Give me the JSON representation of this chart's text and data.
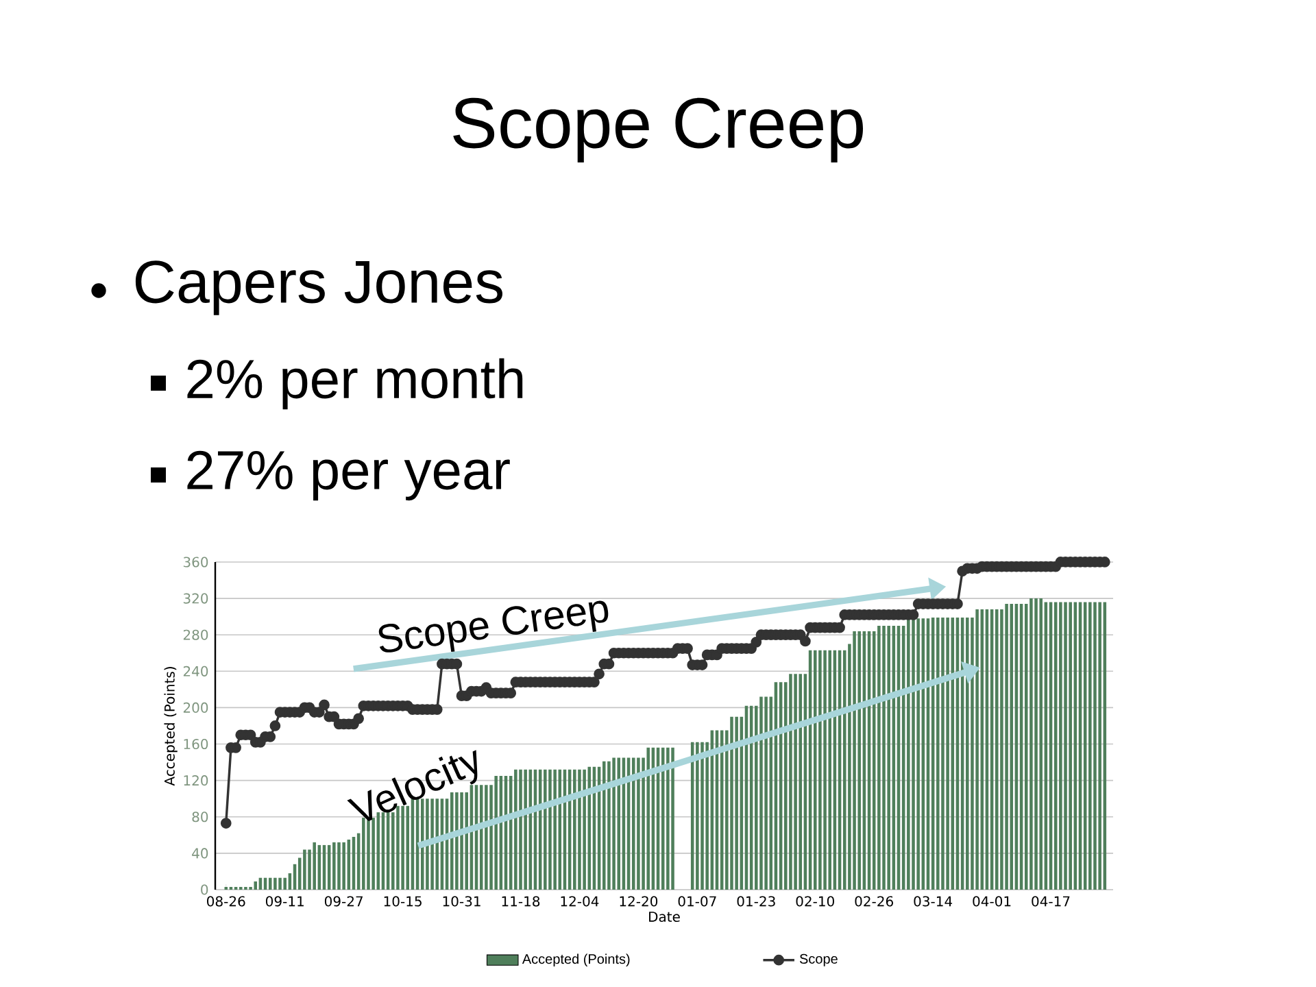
{
  "chart_data": {
    "type": "bar",
    "title": "Scope Creep",
    "subtitle": "Capers Jones",
    "annotations": [
      "2% per month",
      "27% per year",
      "Scope Creep",
      "Velocity"
    ],
    "xlabel": "Date",
    "ylabel": "Accepted (Points)",
    "categories": [
      "08-26",
      null,
      null,
      null,
      null,
      null,
      null,
      null,
      null,
      null,
      null,
      null,
      "09-11",
      null,
      null,
      null,
      null,
      null,
      null,
      null,
      null,
      null,
      null,
      null,
      "09-27",
      null,
      null,
      null,
      null,
      null,
      null,
      null,
      null,
      null,
      null,
      null,
      "10-15",
      null,
      null,
      null,
      null,
      null,
      null,
      null,
      null,
      null,
      null,
      null,
      "10-31",
      null,
      null,
      null,
      null,
      null,
      null,
      null,
      null,
      null,
      null,
      null,
      "11-18",
      null,
      null,
      null,
      null,
      null,
      null,
      null,
      null,
      null,
      null,
      null,
      "12-04",
      null,
      null,
      null,
      null,
      null,
      null,
      null,
      null,
      null,
      null,
      null,
      "12-20",
      null,
      null,
      null,
      null,
      null,
      null,
      null,
      null,
      null,
      null,
      null,
      "01-07",
      null,
      null,
      null,
      null,
      null,
      null,
      null,
      null,
      null,
      null,
      null,
      "01-23",
      null,
      null,
      null,
      null,
      null,
      null,
      null,
      null,
      null,
      null,
      null,
      "02-10",
      null,
      null,
      null,
      null,
      null,
      null,
      null,
      null,
      null,
      null,
      null,
      "02-26",
      null,
      null,
      null,
      null,
      null,
      null,
      null,
      null,
      null,
      null,
      null,
      "03-14",
      null,
      null,
      null,
      null,
      null,
      null,
      null,
      null,
      null,
      null,
      null,
      "04-01",
      null,
      null,
      null,
      null,
      null,
      null,
      null,
      null,
      null,
      null,
      null,
      "04-17",
      null,
      null,
      null,
      null,
      null,
      null,
      null,
      null,
      null,
      null,
      null
    ],
    "series": [
      {
        "name": "Accepted (Points)",
        "type": "bar",
        "color": "#4f7f5b",
        "values": [
          3,
          3,
          3,
          3,
          3,
          3,
          9,
          13,
          13,
          13,
          13,
          13,
          13,
          18,
          28,
          35,
          44,
          44,
          52,
          49,
          49,
          49,
          52,
          52,
          52,
          55,
          58,
          62,
          79,
          79,
          79,
          85,
          85,
          85,
          85,
          92,
          92,
          92,
          100,
          100,
          100,
          100,
          100,
          100,
          100,
          100,
          107,
          107,
          107,
          107,
          115,
          115,
          115,
          115,
          115,
          125,
          125,
          125,
          125,
          132,
          132,
          132,
          132,
          132,
          132,
          132,
          132,
          132,
          132,
          132,
          132,
          132,
          132,
          132,
          135,
          135,
          135,
          141,
          141,
          145,
          145,
          145,
          145,
          145,
          145,
          145,
          156,
          156,
          156,
          156,
          156,
          156,
          null,
          null,
          null,
          162,
          162,
          162,
          162,
          175,
          175,
          175,
          175,
          190,
          190,
          190,
          202,
          202,
          202,
          212,
          212,
          212,
          228,
          228,
          228,
          237,
          237,
          237,
          237,
          263,
          263,
          263,
          263,
          263,
          263,
          263,
          263,
          270,
          284,
          284,
          284,
          284,
          284,
          290,
          290,
          290,
          290,
          290,
          290,
          298,
          298,
          298,
          298,
          298,
          299,
          299,
          299,
          299,
          299,
          299,
          299,
          299,
          299,
          308,
          308,
          308,
          308,
          308,
          308,
          314,
          314,
          314,
          314,
          314,
          320,
          320,
          320,
          316,
          316,
          316,
          316,
          316,
          316,
          316,
          316,
          316,
          316,
          316,
          316,
          316
        ]
      },
      {
        "name": "Scope",
        "type": "line",
        "color": "#333333",
        "marker": "circle",
        "values": [
          73,
          156,
          156,
          170,
          170,
          170,
          162,
          162,
          168,
          168,
          180,
          195,
          195,
          195,
          195,
          195,
          200,
          200,
          195,
          195,
          203,
          190,
          190,
          182,
          182,
          182,
          182,
          188,
          202,
          202,
          202,
          202,
          202,
          202,
          202,
          202,
          202,
          202,
          198,
          198,
          198,
          198,
          198,
          198,
          248,
          248,
          248,
          248,
          213,
          213,
          218,
          218,
          218,
          222,
          216,
          216,
          216,
          216,
          216,
          228,
          228,
          228,
          228,
          228,
          228,
          228,
          228,
          228,
          228,
          228,
          228,
          228,
          228,
          228,
          228,
          228,
          237,
          248,
          248,
          260,
          260,
          260,
          260,
          260,
          260,
          260,
          260,
          260,
          260,
          260,
          260,
          260,
          265,
          265,
          265,
          247,
          247,
          247,
          258,
          258,
          258,
          265,
          265,
          265,
          265,
          265,
          265,
          265,
          272,
          280,
          280,
          280,
          280,
          280,
          280,
          280,
          280,
          280,
          273,
          288,
          288,
          288,
          288,
          288,
          288,
          288,
          302,
          302,
          302,
          302,
          302,
          302,
          302,
          302,
          302,
          302,
          302,
          302,
          302,
          302,
          302,
          314,
          314,
          314,
          314,
          314,
          314,
          314,
          314,
          314,
          350,
          353,
          353,
          353,
          355,
          355,
          355,
          355,
          355,
          355,
          355,
          355,
          355,
          355,
          355,
          355,
          355,
          355,
          355,
          355,
          360,
          360,
          360,
          360,
          360,
          360,
          360,
          360,
          360,
          360
        ]
      }
    ],
    "ylim": [
      0,
      360
    ],
    "yticks": [
      0,
      40,
      80,
      120,
      160,
      200,
      240,
      280,
      320,
      360
    ],
    "grid": "y",
    "legend": "bottom"
  }
}
